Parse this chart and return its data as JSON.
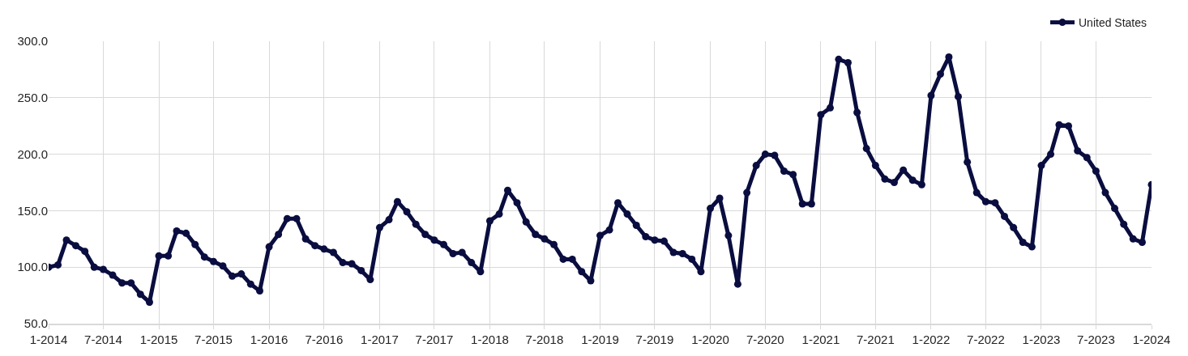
{
  "chart_data": {
    "type": "line",
    "x": [
      "2014-01",
      "2014-02",
      "2014-03",
      "2014-04",
      "2014-05",
      "2014-06",
      "2014-07",
      "2014-08",
      "2014-09",
      "2014-10",
      "2014-11",
      "2014-12",
      "2015-01",
      "2015-02",
      "2015-03",
      "2015-04",
      "2015-05",
      "2015-06",
      "2015-07",
      "2015-08",
      "2015-09",
      "2015-10",
      "2015-11",
      "2015-12",
      "2016-01",
      "2016-02",
      "2016-03",
      "2016-04",
      "2016-05",
      "2016-06",
      "2016-07",
      "2016-08",
      "2016-09",
      "2016-10",
      "2016-11",
      "2016-12",
      "2017-01",
      "2017-02",
      "2017-03",
      "2017-04",
      "2017-05",
      "2017-06",
      "2017-07",
      "2017-08",
      "2017-09",
      "2017-10",
      "2017-11",
      "2017-12",
      "2018-01",
      "2018-02",
      "2018-03",
      "2018-04",
      "2018-05",
      "2018-06",
      "2018-07",
      "2018-08",
      "2018-09",
      "2018-10",
      "2018-11",
      "2018-12",
      "2019-01",
      "2019-02",
      "2019-03",
      "2019-04",
      "2019-05",
      "2019-06",
      "2019-07",
      "2019-08",
      "2019-09",
      "2019-10",
      "2019-11",
      "2019-12",
      "2020-01",
      "2020-02",
      "2020-03",
      "2020-04",
      "2020-05",
      "2020-06",
      "2020-07",
      "2020-08",
      "2020-09",
      "2020-10",
      "2020-11",
      "2020-12",
      "2021-01",
      "2021-02",
      "2021-03",
      "2021-04",
      "2021-05",
      "2021-06",
      "2021-07",
      "2021-08",
      "2021-09",
      "2021-10",
      "2021-11",
      "2021-12",
      "2022-01",
      "2022-02",
      "2022-03",
      "2022-04",
      "2022-05",
      "2022-06",
      "2022-07",
      "2022-08",
      "2022-09",
      "2022-10",
      "2022-11",
      "2022-12",
      "2023-01",
      "2023-02",
      "2023-03",
      "2023-04",
      "2023-05",
      "2023-06",
      "2023-07",
      "2023-08",
      "2023-09",
      "2023-10",
      "2023-11",
      "2023-12",
      "2024-01"
    ],
    "series": [
      {
        "name": "United States",
        "color": "#0a0d3f",
        "values": [
          100,
          102,
          124,
          119,
          114,
          100,
          98,
          93,
          86,
          86,
          76,
          69,
          110,
          110,
          132,
          130,
          120,
          109,
          105,
          101,
          92,
          94,
          85,
          79,
          118,
          129,
          143,
          143,
          125,
          119,
          116,
          113,
          104,
          103,
          97,
          89,
          135,
          142,
          158,
          149,
          138,
          129,
          124,
          120,
          112,
          113,
          104,
          96,
          141,
          147,
          168,
          157,
          140,
          129,
          125,
          120,
          107,
          107,
          96,
          88,
          128,
          133,
          157,
          147,
          137,
          127,
          124,
          123,
          113,
          112,
          107,
          96,
          152,
          161,
          128,
          85,
          166,
          190,
          200,
          199,
          185,
          182,
          156,
          156,
          235,
          241,
          284,
          281,
          237,
          205,
          190,
          178,
          175,
          186,
          177,
          173,
          252,
          271,
          286,
          251,
          193,
          166,
          158,
          157,
          145,
          135,
          122,
          118,
          190,
          200,
          226,
          225,
          203,
          197,
          185,
          166,
          152,
          138,
          125,
          122,
          173
        ]
      }
    ],
    "xlim": [
      "2014-01",
      "2024-01"
    ],
    "xticks": [
      {
        "value": "2014-01",
        "label": "1-2014"
      },
      {
        "value": "2014-07",
        "label": "7-2014"
      },
      {
        "value": "2015-01",
        "label": "1-2015"
      },
      {
        "value": "2015-07",
        "label": "7-2015"
      },
      {
        "value": "2016-01",
        "label": "1-2016"
      },
      {
        "value": "2016-07",
        "label": "7-2016"
      },
      {
        "value": "2017-01",
        "label": "1-2017"
      },
      {
        "value": "2017-07",
        "label": "7-2017"
      },
      {
        "value": "2018-01",
        "label": "1-2018"
      },
      {
        "value": "2018-07",
        "label": "7-2018"
      },
      {
        "value": "2019-01",
        "label": "1-2019"
      },
      {
        "value": "2019-07",
        "label": "7-2019"
      },
      {
        "value": "2020-01",
        "label": "1-2020"
      },
      {
        "value": "2020-07",
        "label": "7-2020"
      },
      {
        "value": "2021-01",
        "label": "1-2021"
      },
      {
        "value": "2021-07",
        "label": "7-2021"
      },
      {
        "value": "2022-01",
        "label": "1-2022"
      },
      {
        "value": "2022-07",
        "label": "7-2022"
      },
      {
        "value": "2023-01",
        "label": "1-2023"
      },
      {
        "value": "2023-07",
        "label": "7-2023"
      },
      {
        "value": "2024-01",
        "label": "1-2024"
      }
    ],
    "ylim": [
      50,
      300
    ],
    "yticks": [
      {
        "value": 50,
        "label": "50.0"
      },
      {
        "value": 100,
        "label": "100.0"
      },
      {
        "value": 150,
        "label": "150.0"
      },
      {
        "value": 200,
        "label": "200.0"
      },
      {
        "value": 250,
        "label": "250.0"
      },
      {
        "value": 300,
        "label": "300.0"
      }
    ],
    "grid": true,
    "legend": "top right",
    "marker": "circle",
    "line_style": "solid"
  }
}
